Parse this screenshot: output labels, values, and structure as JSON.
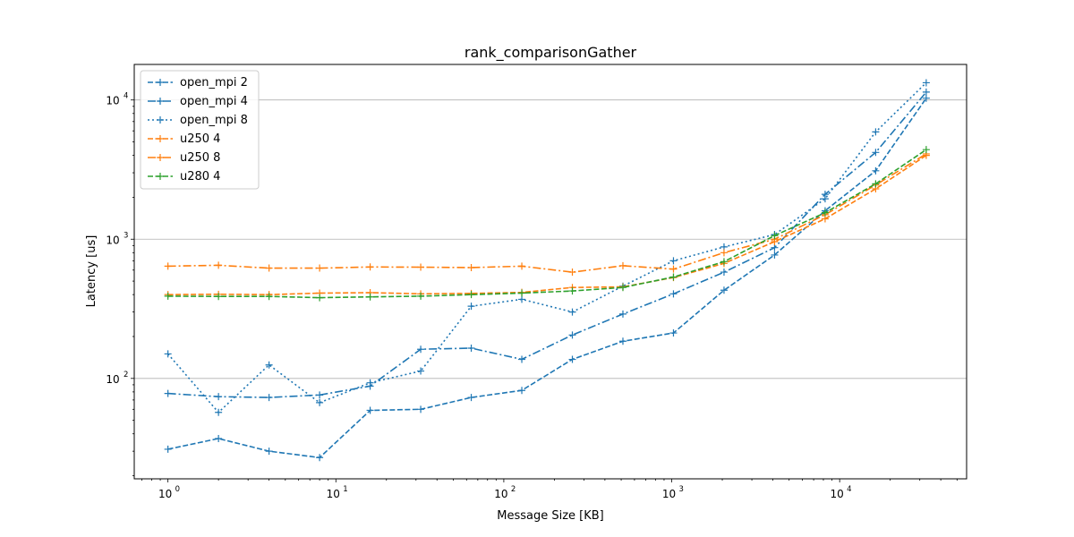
{
  "chart_data": {
    "type": "line",
    "title": "rank_comparisonGather",
    "xlabel": "Message Size [KB]",
    "ylabel": "Latency [us]",
    "xscale": "log",
    "yscale": "log",
    "xlim": [
      0.63,
      57000
    ],
    "ylim": [
      19,
      18000
    ],
    "x_ticks": [
      {
        "value": 1,
        "base": "10",
        "exp": "0"
      },
      {
        "value": 10,
        "base": "10",
        "exp": "1"
      },
      {
        "value": 100,
        "base": "10",
        "exp": "2"
      },
      {
        "value": 1000,
        "base": "10",
        "exp": "3"
      },
      {
        "value": 10000,
        "base": "10",
        "exp": "4"
      }
    ],
    "y_ticks": [
      {
        "value": 100,
        "base": "10",
        "exp": "2"
      },
      {
        "value": 1000,
        "base": "10",
        "exp": "3"
      },
      {
        "value": 10000,
        "base": "10",
        "exp": "4"
      }
    ],
    "grid": "y-major",
    "legend_position": "top-left",
    "x": [
      1,
      2,
      4,
      8,
      16,
      32,
      64,
      128,
      256,
      512,
      1024,
      2048,
      4096,
      8192,
      16384,
      32768
    ],
    "series": [
      {
        "name": "open_mpi 2",
        "color": "#1f77b4",
        "dash": "dashed",
        "values": [
          31,
          37,
          30,
          27,
          59,
          60,
          73,
          82,
          137,
          185,
          212,
          430,
          770,
          1600,
          3100,
          10300
        ]
      },
      {
        "name": "open_mpi 4",
        "color": "#1f77b4",
        "dash": "dashdot",
        "values": [
          78,
          74,
          73,
          76,
          88,
          162,
          165,
          137,
          205,
          290,
          405,
          580,
          870,
          2100,
          4200,
          11400
        ]
      },
      {
        "name": "open_mpi 8",
        "color": "#1f77b4",
        "dash": "dotted",
        "values": [
          150,
          57,
          125,
          67,
          93,
          113,
          330,
          370,
          300,
          460,
          700,
          880,
          1080,
          1950,
          5900,
          13300
        ]
      },
      {
        "name": "u250 4",
        "color": "#ff7f0e",
        "dash": "dashed",
        "values": [
          400,
          402,
          400,
          410,
          413,
          405,
          408,
          415,
          450,
          455,
          530,
          670,
          960,
          1400,
          2300,
          4000
        ]
      },
      {
        "name": "u250 8",
        "color": "#ff7f0e",
        "dash": "dashdot",
        "values": [
          640,
          650,
          620,
          620,
          632,
          630,
          625,
          640,
          580,
          645,
          610,
          800,
          1000,
          1500,
          2450,
          4100
        ]
      },
      {
        "name": "u280 4",
        "color": "#2ca02c",
        "dash": "dashed",
        "values": [
          390,
          388,
          388,
          380,
          385,
          390,
          400,
          410,
          425,
          450,
          535,
          690,
          1060,
          1550,
          2500,
          4400
        ]
      }
    ]
  }
}
